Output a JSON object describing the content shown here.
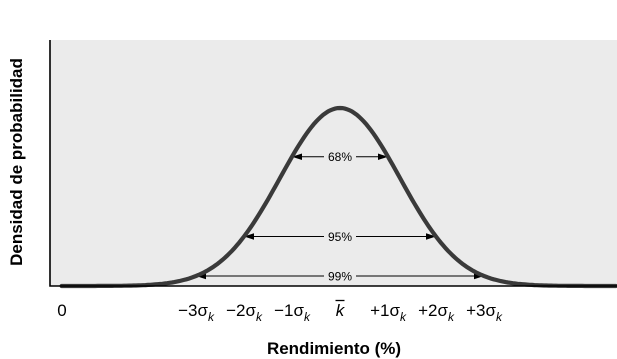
{
  "chart_data": {
    "type": "line",
    "title": "",
    "xlabel": "Rendimiento (%)",
    "ylabel": "Densidad de probabilidad",
    "curve": "normal-distribution",
    "x_ticks": [
      {
        "x": -4.0,
        "main": "0",
        "sub": "",
        "mean": false
      },
      {
        "x": -3,
        "main": "−3σ",
        "sub": "k",
        "mean": false
      },
      {
        "x": -2,
        "main": "−2σ",
        "sub": "k",
        "mean": false
      },
      {
        "x": -1,
        "main": "−1σ",
        "sub": "k",
        "mean": false
      },
      {
        "x": 0,
        "main": "k",
        "sub": "",
        "mean": true
      },
      {
        "x": 1,
        "main": "+1σ",
        "sub": "k",
        "mean": false
      },
      {
        "x": 2,
        "main": "+2σ",
        "sub": "k",
        "mean": false
      },
      {
        "x": 3,
        "main": "+3σ",
        "sub": "k",
        "mean": false
      }
    ],
    "intervals": [
      {
        "label": "68%",
        "from": -1,
        "to": 1
      },
      {
        "label": "95%",
        "from": -2,
        "to": 2
      },
      {
        "label": "99%",
        "from": -3,
        "to": 3
      }
    ],
    "colors": {
      "background": "#ebebeb",
      "curve": "#3a3a3a"
    }
  }
}
